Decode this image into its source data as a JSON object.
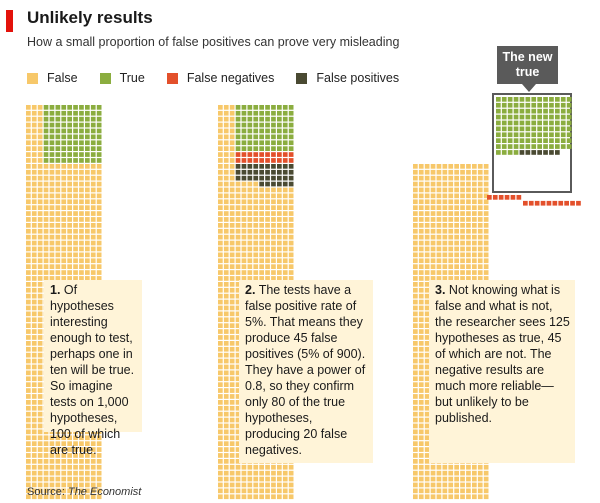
{
  "header": {
    "title": "Unlikely results",
    "subtitle": "How a small proportion of false positives can prove very misleading"
  },
  "legend": [
    {
      "label": "False",
      "color": "#f7c86a"
    },
    {
      "label": "True",
      "color": "#8bad3f"
    },
    {
      "label": "False negatives",
      "color": "#e3502b"
    },
    {
      "label": "False positives",
      "color": "#4a4a32"
    }
  ],
  "colors": {
    "false": "#f7c86a",
    "true": "#8bad3f",
    "false_negative": "#e3502b",
    "false_positive": "#4a4a32",
    "note_background": "#fff4d8",
    "brand_red": "#e3120b"
  },
  "panels": [
    {
      "number": "1.",
      "text": "Of hypotheses interesting enough to test, perhaps one in ten will be true. So imagine tests on 1,000 hypotheses, 100 of which are true.",
      "counts": {
        "true": 100,
        "false": 900
      }
    },
    {
      "number": "2.",
      "text": "The tests have a false positive rate of 5%. That means they produce 45 false positives (5% of 900). They have a power of 0.8, so they confirm only 80 of the true hypotheses, producing 20 false negatives.",
      "counts": {
        "true_confirmed": 80,
        "false_negatives": 20,
        "false_positives": 45,
        "false": 855
      }
    },
    {
      "number": "3.",
      "text": "Not knowing what is false and what is not, the researcher sees 125 hypotheses as true, 45 of which are not. The negative results are much more reliable—but unlikely to be published.",
      "counts": {
        "seen_true": 125,
        "true": 80,
        "false_positives": 45,
        "false_negatives": 20
      }
    }
  ],
  "callout": {
    "text": "The new true"
  },
  "source": {
    "prefix": "Source: ",
    "name": "The Economist"
  }
}
